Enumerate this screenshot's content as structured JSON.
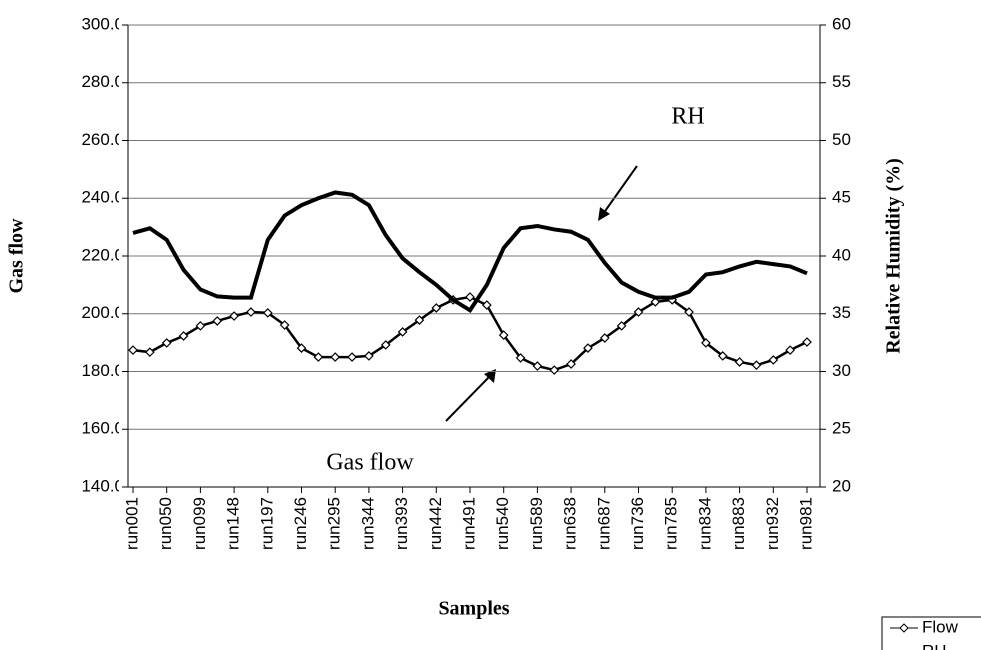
{
  "chart_data": {
    "type": "line",
    "x_label": "Samples",
    "y_label": "Gas flow",
    "y2_label": "Relative Humidity (%)",
    "annotations": [
      "RH",
      "Gas flow"
    ],
    "categories": [
      "run001",
      null,
      "run050",
      null,
      "run099",
      null,
      "run148",
      null,
      "run197",
      null,
      "run246",
      null,
      "run295",
      null,
      "run344",
      null,
      "run393",
      null,
      "run442",
      null,
      "run491",
      null,
      "run540",
      null,
      "run589",
      null,
      "run638",
      null,
      "run687",
      null,
      "run736",
      null,
      "run785",
      null,
      "run834",
      null,
      "run883",
      null,
      "run932",
      null,
      "run981"
    ],
    "ylim": [
      140,
      300
    ],
    "yticks": [
      {
        "value": 140,
        "label": "140.0"
      },
      {
        "value": 160,
        "label": "160.0"
      },
      {
        "value": 180,
        "label": "180.0"
      },
      {
        "value": 200,
        "label": "200.0"
      },
      {
        "value": 220,
        "label": "220.0"
      },
      {
        "value": 240,
        "label": "240.0"
      },
      {
        "value": 260,
        "label": "260.0"
      },
      {
        "value": 280,
        "label": "280.0"
      },
      {
        "value": 300,
        "label": "300.0"
      }
    ],
    "y2lim": [
      20,
      60
    ],
    "y2ticks": [
      20,
      25,
      30,
      35,
      40,
      45,
      50,
      55,
      60
    ],
    "grid": true,
    "legend": "bottom-right",
    "series": [
      {
        "name": "Flow",
        "color": "#000000",
        "marker": "diamond",
        "values": [
          187.4,
          186.7,
          189.9,
          192.3,
          195.8,
          197.5,
          199.2,
          200.6,
          200.3,
          196.1,
          188.1,
          185,
          185,
          185,
          185.4,
          189.2,
          193.7,
          197.8,
          202,
          204.8,
          205.8,
          203,
          192.6,
          184.7,
          181.9,
          180.5,
          182.6,
          188.1,
          191.6,
          195.8,
          200.6,
          204.1,
          204.8,
          200.6,
          189.9,
          185.4,
          183.3,
          182.2,
          184,
          187.4,
          190.2
        ]
      },
      {
        "name": "RH",
        "color": "#000000",
        "axis": "y2",
        "values": [
          42,
          42.4,
          41.4,
          38.8,
          37.1,
          36.5,
          36.4,
          36.4,
          41.4,
          43.5,
          44.4,
          45,
          45.5,
          45.3,
          44.4,
          41.8,
          39.8,
          38.6,
          37.5,
          36.2,
          35.3,
          37.5,
          40.7,
          42.4,
          42.6,
          42.3,
          42.1,
          41.4,
          39.4,
          37.7,
          36.9,
          36.4,
          36.4,
          36.9,
          38.4,
          38.6,
          39.1,
          39.5,
          39.3,
          39.1,
          38.5
        ]
      }
    ]
  }
}
